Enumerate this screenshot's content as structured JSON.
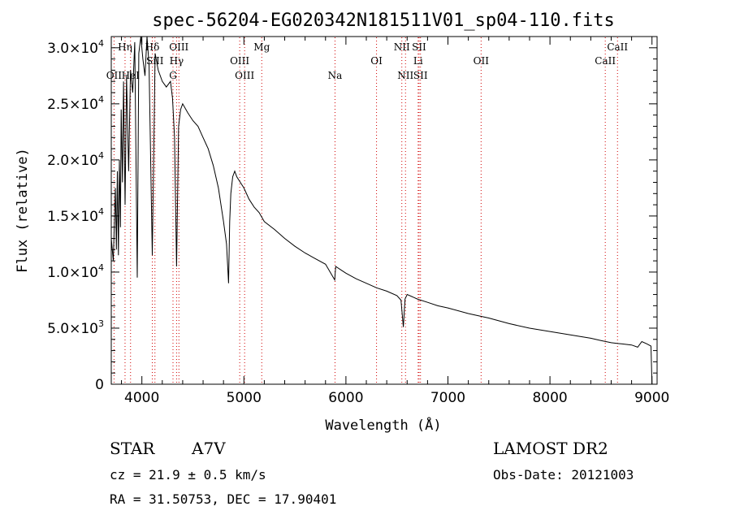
{
  "chart_data": {
    "type": "line",
    "title": "spec-56204-EG020342N181511V01_sp04-110.fits",
    "xlabel": "Wavelength (Å)",
    "ylabel": "Flux (relative)",
    "xlim": [
      3700,
      9050
    ],
    "ylim": [
      0,
      31000
    ],
    "x_ticks": [
      4000,
      5000,
      6000,
      7000,
      8000,
      9000
    ],
    "x_tick_labels": [
      "4000",
      "5000",
      "6000",
      "7000",
      "8000",
      "9000"
    ],
    "y_ticks": [
      0,
      5000,
      10000,
      15000,
      20000,
      25000,
      30000
    ],
    "y_tick_labels": [
      {
        "mant": "0",
        "exp": ""
      },
      {
        "mant": "5.0×10",
        "exp": "3"
      },
      {
        "mant": "1.0×10",
        "exp": "4"
      },
      {
        "mant": "1.5×10",
        "exp": "4"
      },
      {
        "mant": "2.0×10",
        "exp": "4"
      },
      {
        "mant": "2.5×10",
        "exp": "4"
      },
      {
        "mant": "3.0×10",
        "exp": "4"
      }
    ],
    "series": [
      {
        "name": "spectrum",
        "color": "#000000",
        "x": [
          3700,
          3720,
          3740,
          3750,
          3760,
          3770,
          3780,
          3790,
          3797,
          3810,
          3820,
          3835,
          3850,
          3870,
          3889,
          3910,
          3930,
          3955,
          3970,
          3990,
          4010,
          4030,
          4050,
          4070,
          4102,
          4130,
          4160,
          4200,
          4240,
          4280,
          4300,
          4320,
          4340,
          4360,
          4380,
          4400,
          4450,
          4500,
          4550,
          4600,
          4650,
          4700,
          4750,
          4800,
          4830,
          4850,
          4861,
          4872,
          4890,
          4910,
          4930,
          5000,
          5050,
          5100,
          5150,
          5200,
          5300,
          5400,
          5500,
          5600,
          5700,
          5800,
          5890,
          5900,
          5950,
          6000,
          6100,
          6200,
          6300,
          6400,
          6500,
          6540,
          6563,
          6580,
          6600,
          6700,
          6800,
          6900,
          7000,
          7200,
          7400,
          7600,
          7800,
          8000,
          8200,
          8400,
          8500,
          8600,
          8700,
          8800,
          8860,
          8900,
          8950,
          8990,
          9000
        ],
        "y": [
          13000,
          11000,
          17500,
          12000,
          19000,
          11500,
          20000,
          14000,
          24500,
          18000,
          27000,
          16000,
          27500,
          19000,
          28000,
          26000,
          30500,
          9500,
          29500,
          31000,
          29000,
          27500,
          31000,
          28500,
          11500,
          29500,
          28000,
          27000,
          26500,
          27000,
          25500,
          22000,
          10500,
          23000,
          24500,
          25000,
          24200,
          23500,
          23000,
          22000,
          21000,
          19500,
          17500,
          14500,
          12500,
          9000,
          14500,
          17000,
          18500,
          19000,
          18500,
          17500,
          16500,
          15800,
          15300,
          14500,
          13800,
          13000,
          12300,
          11700,
          11200,
          10700,
          9300,
          10500,
          10200,
          9900,
          9400,
          9000,
          8600,
          8300,
          7900,
          7500,
          5100,
          7600,
          8000,
          7600,
          7300,
          7000,
          6800,
          6300,
          5900,
          5400,
          5000,
          4700,
          4400,
          4100,
          3900,
          3700,
          3600,
          3500,
          3300,
          3800,
          3600,
          3400,
          0
        ]
      }
    ],
    "line_markers": [
      {
        "label": "Hη",
        "x": 3835,
        "row": 0
      },
      {
        "label": "OII",
        "x": 3727,
        "row": 2
      },
      {
        "label": "HeI",
        "x": 3889,
        "row": 2
      },
      {
        "label": "Hδ",
        "x": 4102,
        "row": 0
      },
      {
        "label": "SiII",
        "x": 4128,
        "row": 1
      },
      {
        "label": "OIII",
        "x": 4363,
        "row": 0
      },
      {
        "label": "Hγ",
        "x": 4340,
        "row": 1
      },
      {
        "label": "G",
        "x": 4305,
        "row": 2
      },
      {
        "label": "OIII",
        "x": 4959,
        "row": 1
      },
      {
        "label": "OIII",
        "x": 5007,
        "row": 2
      },
      {
        "label": "Mg",
        "x": 5175,
        "row": 0
      },
      {
        "label": "Na",
        "x": 5893,
        "row": 2
      },
      {
        "label": "OI",
        "x": 6300,
        "row": 1
      },
      {
        "label": "NII",
        "x": 6548,
        "row": 0
      },
      {
        "label": "SII",
        "x": 6717,
        "row": 0
      },
      {
        "label": "Li",
        "x": 6708,
        "row": 1
      },
      {
        "label": "NII",
        "x": 6584,
        "row": 2
      },
      {
        "label": "SII",
        "x": 6731,
        "row": 2
      },
      {
        "label": "OII",
        "x": 7325,
        "row": 1
      },
      {
        "label": "CaII",
        "x": 8662,
        "row": 0
      },
      {
        "label": "CaII",
        "x": 8542,
        "row": 1
      }
    ]
  },
  "info": {
    "object_class": "STAR",
    "subclass": "A7V",
    "survey": "LAMOST DR2",
    "cz": "cz = 21.9 ± 0.5 km/s",
    "obs_date": "Obs-Date: 20121003",
    "coords": "RA =  31.50753, DEC =  17.90401"
  },
  "colors": {
    "marker_line": "#d00000",
    "spectrum": "#000000"
  }
}
